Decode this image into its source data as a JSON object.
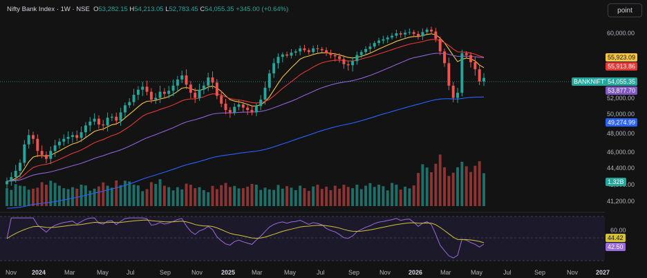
{
  "header": {
    "symbol": "Nifty Bank Index · 1W · NSE",
    "open_label": "O",
    "open": "53,282.15",
    "high_label": "H",
    "high": "54,213.05",
    "low_label": "L",
    "low": "52,783.45",
    "close_label": "C",
    "close": "54,055.35",
    "change": "+345.00 (+0.64%)"
  },
  "toolbar": {
    "scale_mode": "point"
  },
  "colors": {
    "background": "#131314",
    "up": "#26a69a",
    "down": "#ef5350",
    "ema_short": "#f5c542",
    "ema_mid": "#e53935",
    "ema_long_a": "#8e63d6",
    "ema_long_b": "#2962ff",
    "rsi": "#9c6bdc",
    "rsi_ma": "#d4c23a"
  },
  "price_labels": {
    "ema_short": "55,923.09",
    "ema_mid": "55,913.86",
    "symbol_tag": "BANKNIFTY",
    "last_price": "54,055.35",
    "ema_long_a": "53,877.70",
    "ema_long_b": "49,274.99",
    "volume": "1.32B",
    "rsi_ma": "44.42",
    "rsi": "42.50"
  },
  "chart_data": {
    "type": "candlestick",
    "timeframe": "1W",
    "price_axis_ticks": [
      "60,000.00",
      "56,000.00",
      "52,000.00",
      "50,000.00",
      "48,000.00",
      "46,000.00",
      "44,400.00",
      "42,800.00",
      "41,200.00"
    ],
    "rsi_axis_ticks": [
      "60.00"
    ],
    "x_ticks": [
      "Nov",
      "2024",
      "Mar",
      "May",
      "Jul",
      "Sep",
      "Nov",
      "2025",
      "Mar",
      "May",
      "Jul",
      "Sep",
      "Nov",
      "2026",
      "Mar",
      "May",
      "Jul",
      "Sep",
      "Nov",
      "2027"
    ],
    "ylim": [
      40600,
      62400
    ],
    "weekly_close": [
      43200,
      43600,
      44200,
      45000,
      46900,
      47900,
      47500,
      46200,
      45800,
      45400,
      46200,
      46800,
      47200,
      47500,
      47700,
      47900,
      47600,
      48200,
      48900,
      49300,
      49600,
      49000,
      48900,
      49700,
      49800,
      49400,
      50300,
      51200,
      51600,
      52400,
      52900,
      53200,
      52700,
      51900,
      52100,
      52700,
      52500,
      52800,
      53300,
      53900,
      54300,
      53400,
      52600,
      52100,
      52900,
      53300,
      54100,
      53600,
      52300,
      51400,
      50600,
      50300,
      51000,
      51300,
      50900,
      50600,
      50300,
      51100,
      51900,
      53100,
      54500,
      55500,
      56200,
      56600,
      56400,
      56900,
      57100,
      57600,
      57300,
      57000,
      57600,
      57500,
      57300,
      56800,
      56500,
      56300,
      55900,
      55400,
      55300,
      55700,
      56500,
      57000,
      57500,
      57900,
      58500,
      58900,
      59100,
      59400,
      59700,
      60100,
      59900,
      60200,
      60300,
      60000,
      59600,
      60300,
      60700,
      60400,
      59200,
      57100,
      55500,
      53300,
      52100,
      52600,
      56800,
      56500,
      55600,
      54900,
      53700,
      54055
    ],
    "weekly_volume_billion": [
      0.72,
      0.65,
      0.88,
      0.82,
      0.8,
      0.66,
      0.7,
      0.74,
      0.96,
      0.86,
      1.02,
      0.93,
      0.82,
      0.72,
      0.68,
      0.76,
      0.7,
      0.86,
      0.83,
      0.62,
      0.7,
      0.79,
      0.95,
      0.82,
      0.74,
      1.03,
      0.84,
      1.02,
      0.99,
      0.86,
      0.83,
      0.6,
      0.68,
      0.96,
      0.89,
      1.08,
      0.82,
      0.76,
      0.63,
      0.76,
      0.67,
      0.9,
      0.86,
      0.72,
      0.76,
      0.64,
      0.56,
      0.81,
      0.68,
      0.84,
      0.93,
      0.77,
      0.81,
      0.71,
      0.72,
      0.78,
      0.89,
      0.86,
      0.65,
      0.74,
      0.67,
      0.65,
      0.85,
      0.7,
      0.8,
      0.74,
      0.64,
      0.82,
      0.72,
      0.61,
      0.79,
      0.86,
      0.69,
      0.78,
      0.64,
      0.82,
      0.7,
      0.86,
      0.77,
      0.72,
      0.86,
      0.68,
      0.82,
      0.92,
      0.77,
      0.86,
      0.8,
      0.63,
      0.93,
      0.86,
      0.66,
      0.78,
      0.71,
      0.83,
      1.33,
      1.68,
      1.55,
      1.36,
      1.7,
      2.07,
      1.56,
      1.21,
      1.34,
      1.56,
      1.78,
      1.6,
      1.37,
      1.62,
      1.8,
      1.32
    ],
    "rsi_axis_range": [
      20,
      80
    ],
    "rsi_last": 42.5,
    "rsi_ma_last": 44.42
  }
}
